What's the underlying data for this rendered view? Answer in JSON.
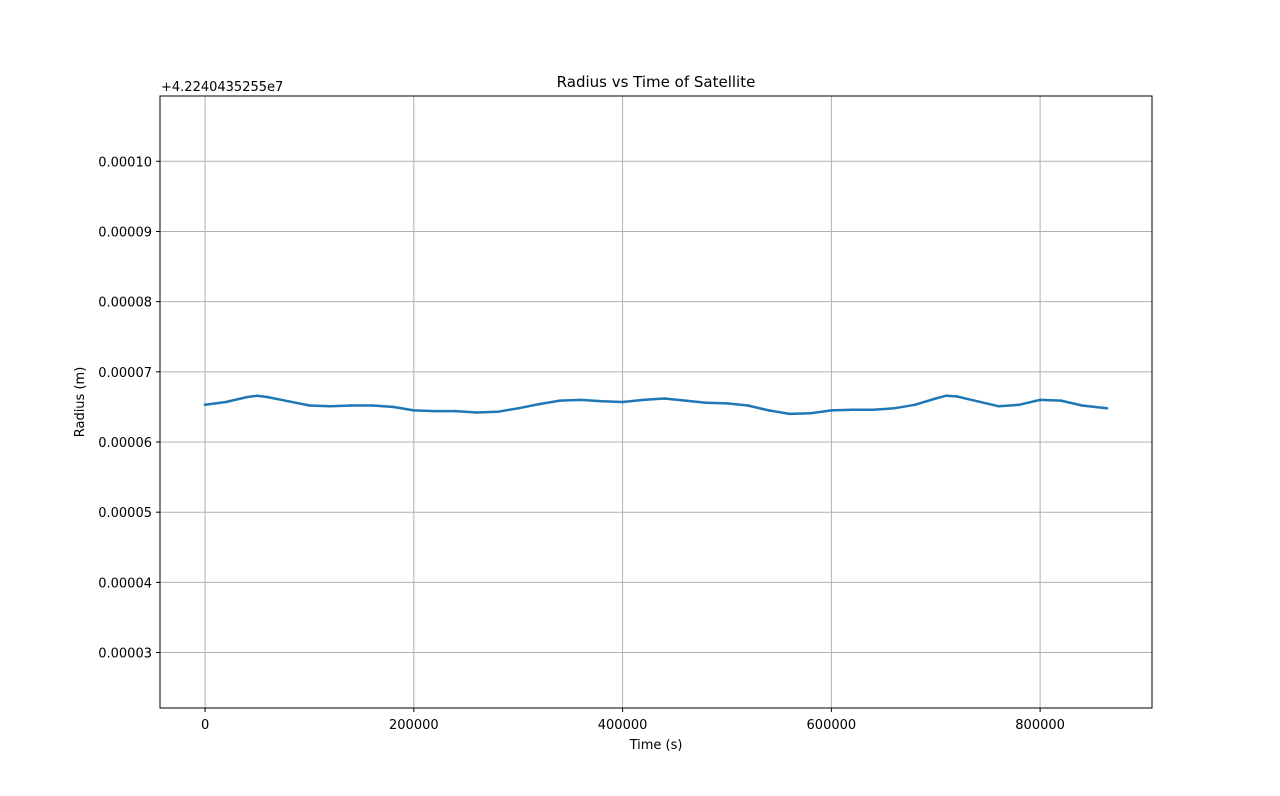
{
  "chart_data": {
    "type": "line",
    "title": "Radius vs Time of Satellite",
    "xlabel": "Time (s)",
    "ylabel": "Radius (m)",
    "offset_label": "+4.2240435255e7",
    "xlim": [
      -43200,
      907200
    ],
    "ylim": [
      2.21e-05,
      0.0001093
    ],
    "xticks": [
      0,
      200000,
      400000,
      600000,
      800000
    ],
    "xtick_labels": [
      "0",
      "200000",
      "400000",
      "600000",
      "800000"
    ],
    "yticks": [
      3e-05,
      4e-05,
      5e-05,
      6e-05,
      7e-05,
      8e-05,
      9e-05,
      0.0001
    ],
    "ytick_labels": [
      "0.00003",
      "0.00004",
      "0.00005",
      "0.00006",
      "0.00007",
      "0.00008",
      "0.00009",
      "0.00010"
    ],
    "grid": true,
    "line_color": "#1f77b4",
    "series": [
      {
        "x": [
          0,
          20000,
          40000,
          50000,
          60000,
          80000,
          100000,
          120000,
          140000,
          160000,
          180000,
          200000,
          220000,
          240000,
          260000,
          280000,
          300000,
          320000,
          340000,
          360000,
          380000,
          400000,
          420000,
          440000,
          460000,
          480000,
          500000,
          520000,
          540000,
          560000,
          580000,
          600000,
          620000,
          640000,
          660000,
          680000,
          700000,
          710000,
          720000,
          740000,
          760000,
          780000,
          800000,
          820000,
          840000,
          864000
        ],
        "values": [
          6.53e-05,
          6.57e-05,
          6.64e-05,
          6.66e-05,
          6.64e-05,
          6.58e-05,
          6.52e-05,
          6.51e-05,
          6.52e-05,
          6.52e-05,
          6.5e-05,
          6.45e-05,
          6.44e-05,
          6.44e-05,
          6.42e-05,
          6.43e-05,
          6.48e-05,
          6.54e-05,
          6.59e-05,
          6.6e-05,
          6.58e-05,
          6.57e-05,
          6.6e-05,
          6.62e-05,
          6.59e-05,
          6.56e-05,
          6.55e-05,
          6.52e-05,
          6.45e-05,
          6.4e-05,
          6.41e-05,
          6.45e-05,
          6.46e-05,
          6.46e-05,
          6.48e-05,
          6.53e-05,
          6.62e-05,
          6.66e-05,
          6.65e-05,
          6.58e-05,
          6.51e-05,
          6.53e-05,
          6.6e-05,
          6.59e-05,
          6.52e-05,
          6.48e-05
        ]
      }
    ]
  }
}
